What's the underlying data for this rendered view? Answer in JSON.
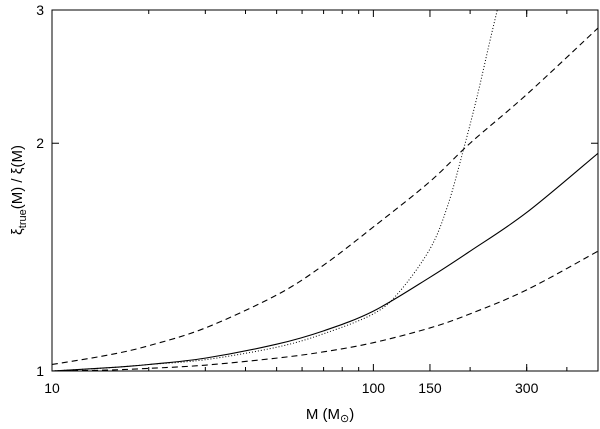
{
  "chart_data": {
    "type": "line",
    "xlabel": {
      "main": "M (M",
      "sub": "⊙",
      "end": ")"
    },
    "ylabel": {
      "xi": "ξ",
      "sub": "true",
      "rest": "(M) / ξ(M)"
    },
    "xscale": "log",
    "yscale": "log",
    "xlim": [
      10,
      500
    ],
    "ylim": [
      1,
      3
    ],
    "grid": false,
    "xticks": [
      {
        "value": 10,
        "label": "10"
      },
      {
        "value": 100,
        "label": "100"
      },
      {
        "value": 150,
        "label": "150"
      },
      {
        "value": 300,
        "label": "300"
      }
    ],
    "yticks": [
      {
        "value": 1,
        "label": "1"
      },
      {
        "value": 2,
        "label": "2"
      },
      {
        "value": 3,
        "label": "3"
      }
    ],
    "series": [
      {
        "style": "solid",
        "x": [
          10,
          15,
          20,
          30,
          50,
          70,
          100,
          150,
          200,
          300,
          500
        ],
        "y": [
          1.0,
          1.01,
          1.02,
          1.04,
          1.085,
          1.13,
          1.2,
          1.33,
          1.44,
          1.62,
          1.94
        ]
      },
      {
        "style": "dashed-upper",
        "x": [
          10,
          15,
          20,
          30,
          50,
          70,
          100,
          150,
          200,
          300,
          500
        ],
        "y": [
          1.02,
          1.05,
          1.08,
          1.14,
          1.26,
          1.38,
          1.55,
          1.78,
          2.0,
          2.32,
          2.84
        ]
      },
      {
        "style": "dashed-lower",
        "x": [
          10,
          15,
          20,
          30,
          50,
          70,
          100,
          150,
          200,
          300,
          500
        ],
        "y": [
          1.0,
          1.003,
          1.008,
          1.018,
          1.04,
          1.06,
          1.09,
          1.14,
          1.19,
          1.28,
          1.44
        ]
      },
      {
        "style": "dotted",
        "x": [
          10,
          15,
          20,
          30,
          50,
          70,
          100,
          120,
          150,
          170,
          190,
          210,
          230,
          243
        ],
        "y": [
          1.0,
          1.01,
          1.02,
          1.035,
          1.075,
          1.12,
          1.19,
          1.27,
          1.45,
          1.65,
          1.95,
          2.3,
          2.72,
          3.0
        ]
      }
    ]
  }
}
